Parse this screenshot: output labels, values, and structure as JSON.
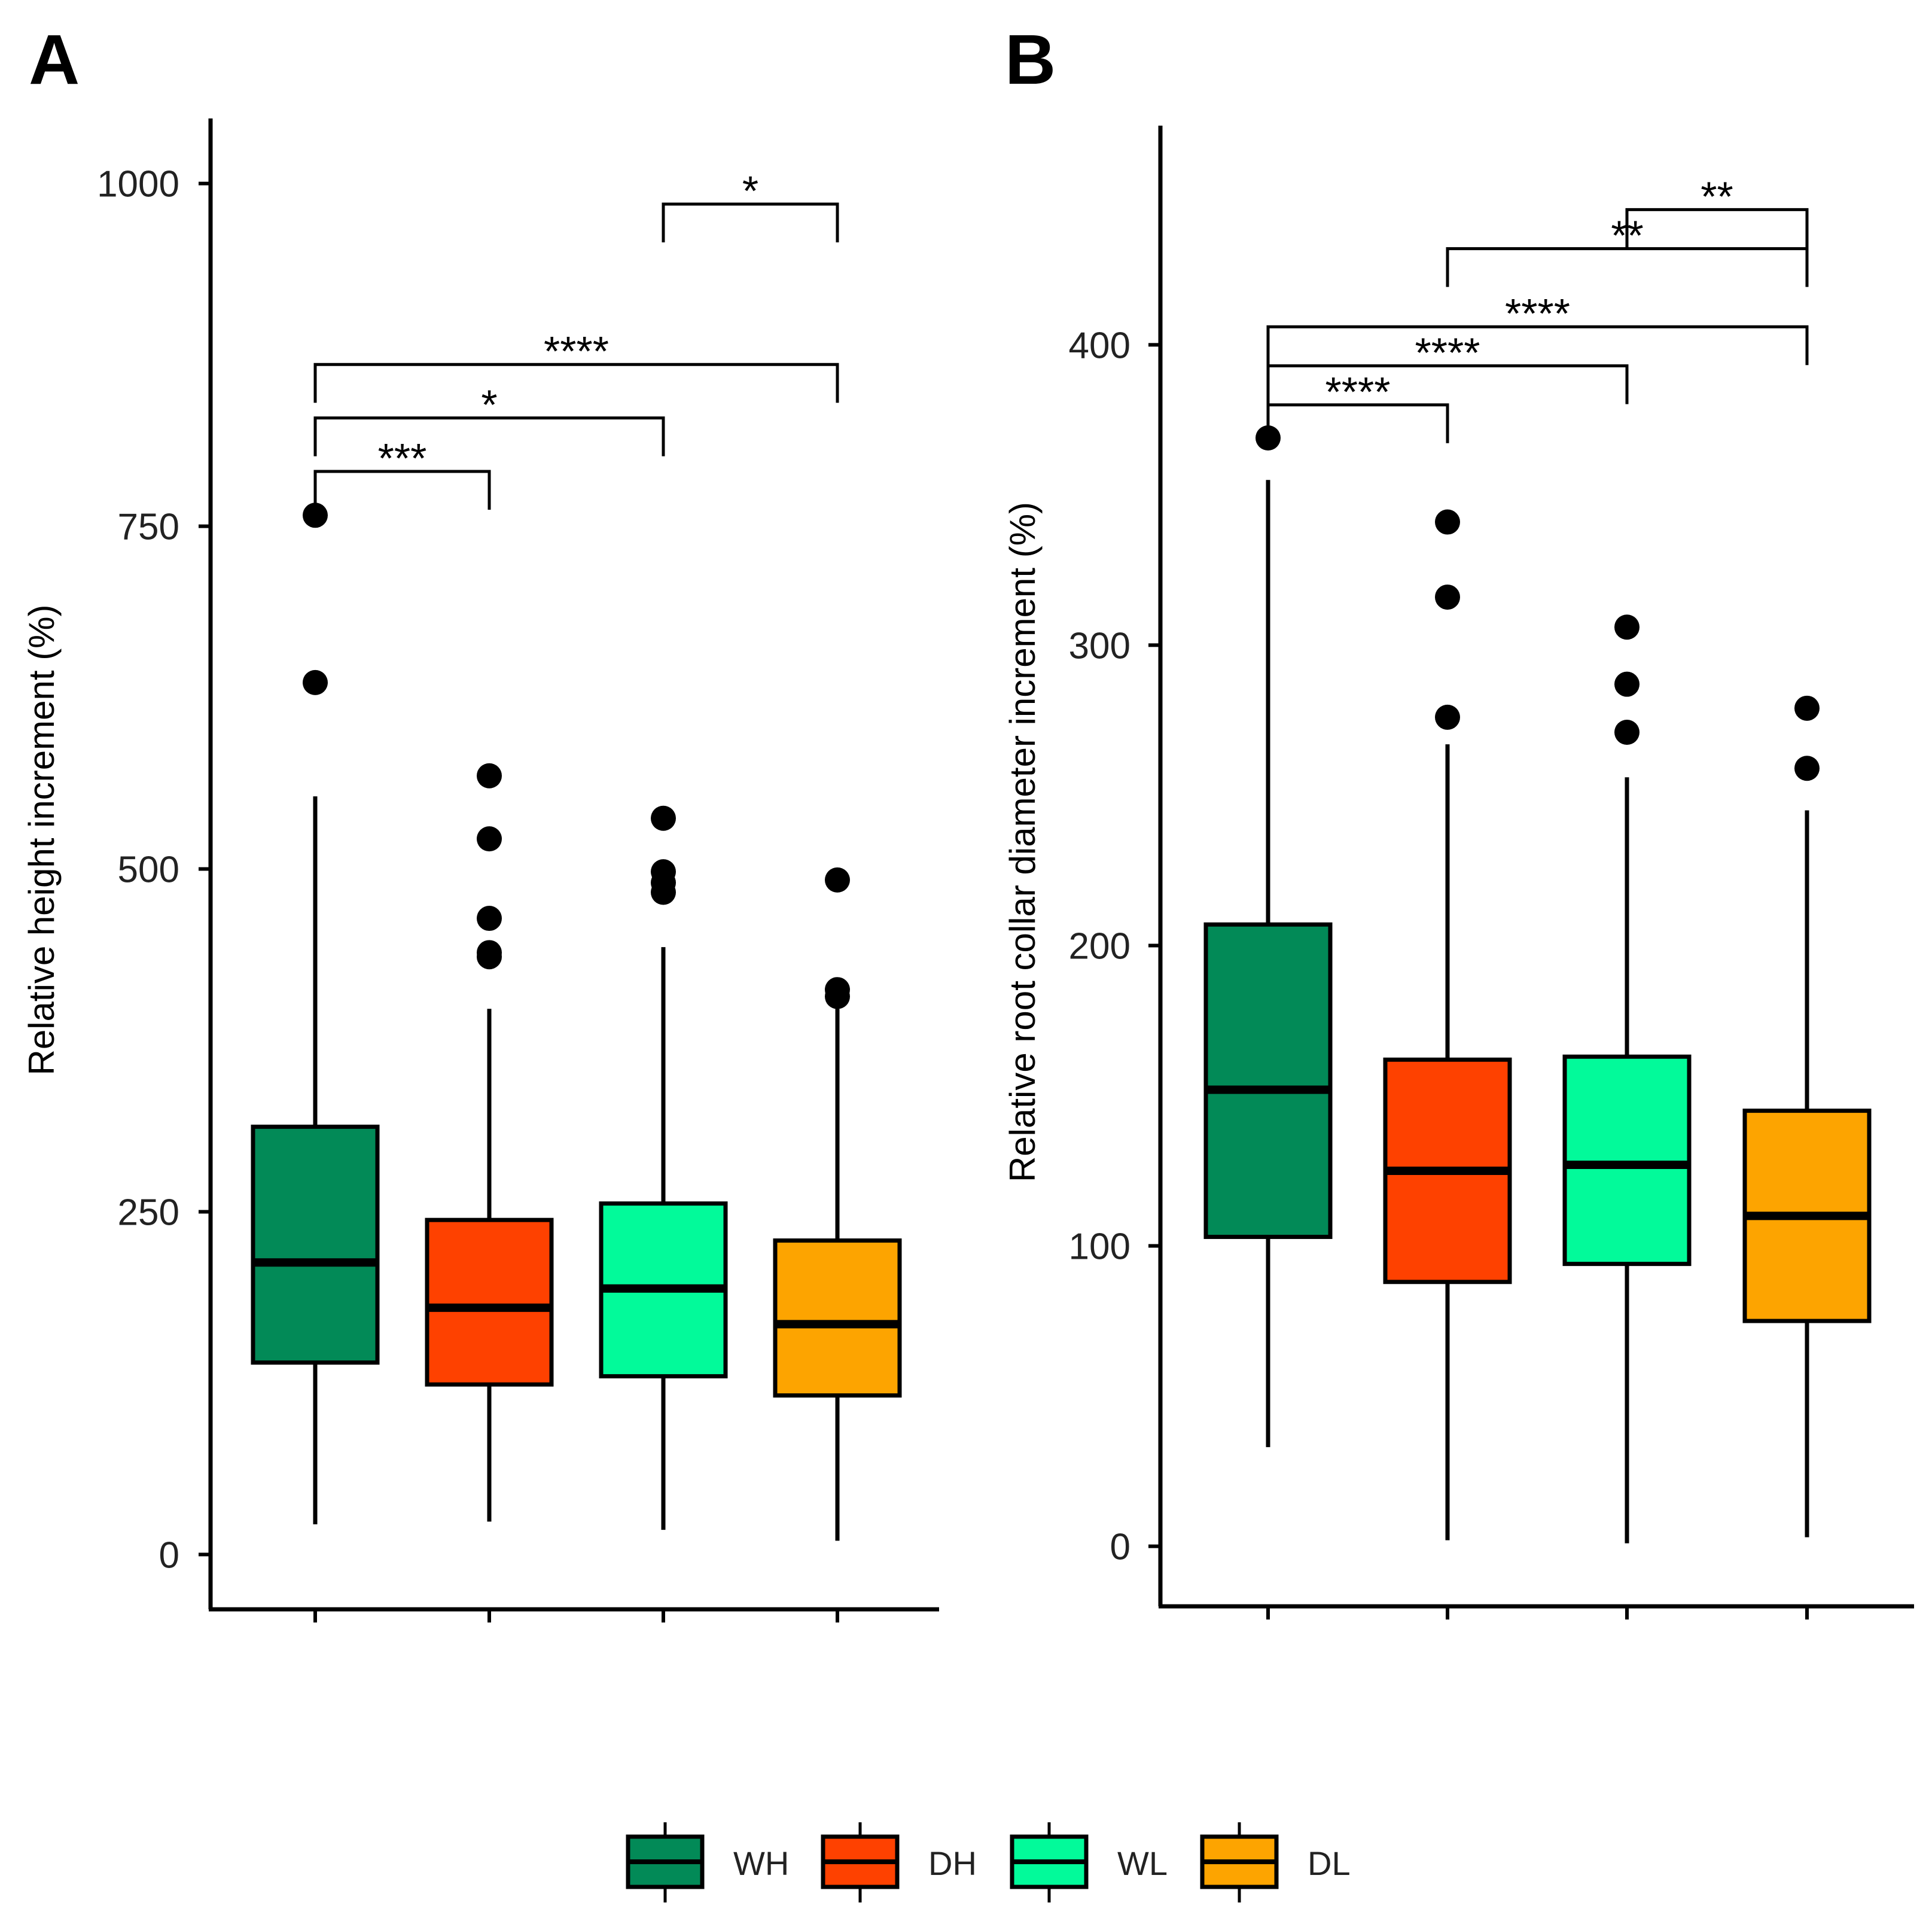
{
  "colors": {
    "WH": "#028A57",
    "DH": "#FE4100",
    "WL": "#02FA9A",
    "DL": "#FDA400",
    "ink": "#000000"
  },
  "legend": [
    "WH",
    "DH",
    "WL",
    "DL"
  ],
  "chart_data": [
    {
      "type": "boxplot",
      "panel_label": "A",
      "ylabel": "Relative height increment (%)",
      "ylim": [
        -40,
        1030
      ],
      "yticks": [
        0,
        250,
        500,
        750,
        1000
      ],
      "ytick_labels": [
        "0",
        "250",
        "500",
        "750",
        "1000"
      ],
      "grid": false,
      "categories": [
        "WH",
        "DH",
        "WL",
        "DL"
      ],
      "boxes": [
        {
          "name": "WH",
          "whisker_low": 22,
          "q1": 140,
          "median": 213,
          "q3": 312,
          "whisker_high": 553,
          "outliers": [
            636,
            758
          ]
        },
        {
          "name": "DH",
          "whisker_low": 24,
          "q1": 124,
          "median": 180,
          "q3": 244,
          "whisker_high": 398,
          "outliers": [
            436,
            439,
            464,
            522,
            568
          ]
        },
        {
          "name": "WL",
          "whisker_low": 18,
          "q1": 130,
          "median": 194,
          "q3": 256,
          "whisker_high": 443,
          "outliers": [
            483,
            490,
            498,
            537
          ]
        },
        {
          "name": "DL",
          "whisker_low": 10,
          "q1": 116,
          "median": 168,
          "q3": 229,
          "whisker_high": 398,
          "outliers": [
            407,
            412,
            492
          ]
        }
      ],
      "brackets": [
        {
          "from": "WL",
          "to": "DL",
          "y": 985,
          "label": "*"
        },
        {
          "from": "WH",
          "to": "DL",
          "y": 868,
          "label": "****"
        },
        {
          "from": "WH",
          "to": "WL",
          "y": 829,
          "label": "*"
        },
        {
          "from": "WH",
          "to": "DH",
          "y": 790,
          "label": "***"
        }
      ]
    },
    {
      "type": "boxplot",
      "panel_label": "B",
      "ylabel": "Relative root collar diameter increment (%)",
      "ylim": [
        -20,
        465
      ],
      "yticks": [
        0,
        100,
        200,
        300,
        400
      ],
      "ytick_labels": [
        "0",
        "100",
        "200",
        "300",
        "400"
      ],
      "grid": false,
      "categories": [
        "WH",
        "DH",
        "WL",
        "DL"
      ],
      "boxes": [
        {
          "name": "WH",
          "whisker_low": 33,
          "q1": 103,
          "median": 152,
          "q3": 207,
          "whisker_high": 355,
          "outliers": [
            369
          ]
        },
        {
          "name": "DH",
          "whisker_low": 2,
          "q1": 88,
          "median": 125,
          "q3": 162,
          "whisker_high": 267,
          "outliers": [
            276,
            316,
            341
          ]
        },
        {
          "name": "WL",
          "whisker_low": 1,
          "q1": 94,
          "median": 127,
          "q3": 163,
          "whisker_high": 256,
          "outliers": [
            271,
            287,
            306
          ]
        },
        {
          "name": "DL",
          "whisker_low": 3,
          "q1": 75,
          "median": 110,
          "q3": 145,
          "whisker_high": 245,
          "outliers": [
            259,
            279
          ]
        }
      ],
      "brackets": [
        {
          "from": "WL",
          "to": "DL",
          "y": 445,
          "label": "**"
        },
        {
          "from": "DH",
          "to": "DL",
          "y": 432,
          "label": "**"
        },
        {
          "from": "WH",
          "to": "DL",
          "y": 406,
          "label": "****"
        },
        {
          "from": "WH",
          "to": "WL",
          "y": 393,
          "label": "****"
        },
        {
          "from": "WH",
          "to": "DH",
          "y": 380,
          "label": "****"
        }
      ]
    }
  ]
}
